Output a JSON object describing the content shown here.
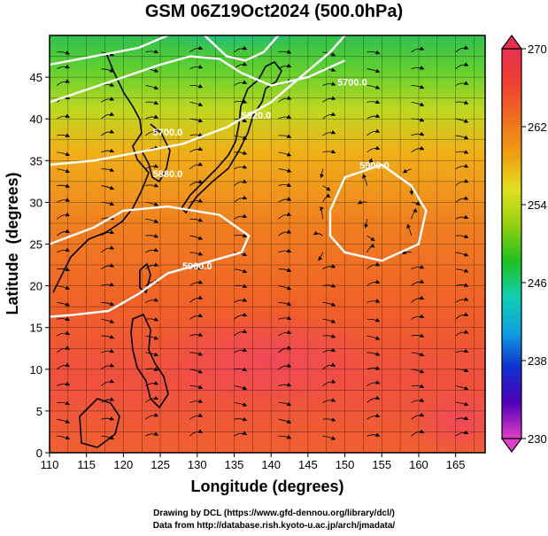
{
  "title": "GSM 06Z19Oct2024 (500.0hPa)",
  "credits": {
    "line1": "Drawing by DCL (https://www.gfd-dennou.org/library/dcl/)",
    "line2": "Data from http://database.rish.kyoto-u.ac.jp/arch/jmadata/"
  },
  "chart_data": {
    "type": "heatmap",
    "title": "GSM 06Z19Oct2024 (500.0hPa)",
    "xlabel": "Longitude (degrees)",
    "ylabel": "Latitude  (degrees)",
    "xlim": [
      110,
      169
    ],
    "ylim": [
      0,
      50
    ],
    "xticks": [
      110,
      115,
      120,
      125,
      130,
      135,
      140,
      145,
      150,
      155,
      160,
      165
    ],
    "yticks": [
      0,
      5,
      10,
      15,
      20,
      25,
      30,
      35,
      40,
      45
    ],
    "grid": true,
    "colorbar": {
      "ticks": [
        230,
        238,
        246,
        254,
        262,
        270
      ],
      "range": [
        230,
        270
      ],
      "colors": [
        "#e040c8",
        "#5000b8",
        "#1030d0",
        "#10a0e0",
        "#10d0b0",
        "#20c020",
        "#90d010",
        "#e0e020",
        "#f0a010",
        "#f07020",
        "#f04030",
        "#e83050"
      ]
    },
    "contour_labels": [
      {
        "text": "5700.0",
        "lon": 151,
        "lat": 44
      },
      {
        "text": "5820.0",
        "lon": 138,
        "lat": 40
      },
      {
        "text": "5700.0",
        "lon": 126,
        "lat": 38
      },
      {
        "text": "5880.0",
        "lon": 126,
        "lat": 33
      },
      {
        "text": "5900.0",
        "lon": 154,
        "lat": 34
      },
      {
        "text": "5900.0",
        "lon": 130,
        "lat": 22
      }
    ],
    "contours": [
      {
        "name": "c5880",
        "points": [
          [
            110,
            34.5
          ],
          [
            116,
            35
          ],
          [
            122,
            36
          ],
          [
            128,
            37
          ],
          [
            134,
            39
          ],
          [
            140,
            42
          ],
          [
            144,
            45
          ],
          [
            148,
            48
          ],
          [
            150,
            50
          ]
        ]
      },
      {
        "name": "c5900",
        "points": [
          [
            110,
            25
          ],
          [
            116,
            27
          ],
          [
            120,
            29
          ],
          [
            126,
            29.5
          ],
          [
            133,
            28.5
          ],
          [
            137,
            26
          ],
          [
            136,
            24
          ],
          [
            132,
            23
          ],
          [
            126,
            21.5
          ],
          [
            122,
            19
          ],
          [
            118,
            17
          ],
          [
            113,
            16.5
          ],
          [
            110,
            16.3
          ]
        ]
      },
      {
        "name": "c5900-high",
        "points": [
          [
            148,
            29
          ],
          [
            150,
            33
          ],
          [
            155,
            34.5
          ],
          [
            159,
            32
          ],
          [
            161,
            29
          ],
          [
            160,
            25
          ],
          [
            155,
            23
          ],
          [
            150,
            24
          ],
          [
            148,
            26
          ],
          [
            148,
            29
          ]
        ]
      },
      {
        "name": "c5820",
        "points": [
          [
            110,
            42
          ],
          [
            115,
            43.5
          ],
          [
            120,
            45
          ],
          [
            125,
            46.5
          ],
          [
            129,
            47.5
          ],
          [
            133,
            47.2
          ],
          [
            136,
            45.5
          ],
          [
            140,
            44
          ],
          [
            145,
            45
          ],
          [
            150,
            47
          ]
        ]
      },
      {
        "name": "c5700",
        "points": [
          [
            110,
            46.5
          ],
          [
            116,
            47.5
          ],
          [
            122,
            48.5
          ],
          [
            126,
            50
          ]
        ]
      },
      {
        "name": "c5700-b",
        "points": [
          [
            131,
            50
          ],
          [
            134,
            47.5
          ],
          [
            136.5,
            47
          ],
          [
            139,
            48
          ],
          [
            141,
            50
          ]
        ]
      }
    ]
  }
}
